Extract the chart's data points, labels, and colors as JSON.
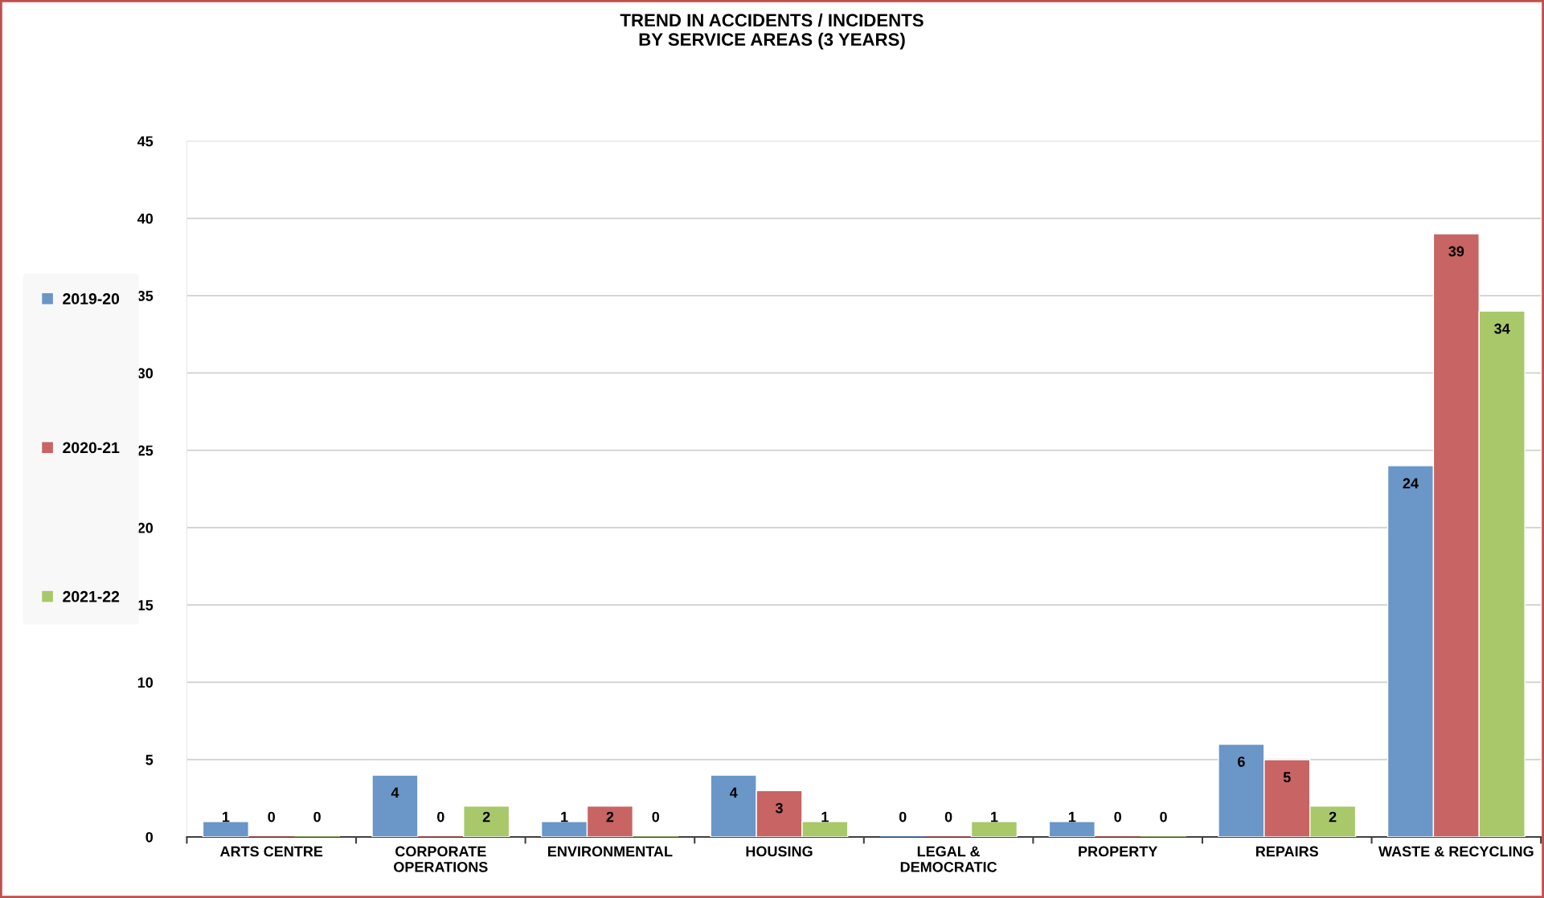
{
  "chart_data": {
    "type": "bar",
    "title": "TREND IN ACCIDENTS / INCIDENTS\nBY SERVICE AREAS (3 YEARS)",
    "categories": [
      "ARTS CENTRE",
      "CORPORATE\nOPERATIONS",
      "ENVIRONMENTAL",
      "HOUSING",
      "LEGAL &\nDEMOCRATIC",
      "PROPERTY",
      "REPAIRS",
      "WASTE & RECYCLING"
    ],
    "series": [
      {
        "name": "2019-20",
        "color": "#6a96c8",
        "values": [
          1,
          4,
          1,
          4,
          0,
          1,
          6,
          24
        ]
      },
      {
        "name": "2020-21",
        "color": "#c86464",
        "values": [
          0,
          0,
          2,
          3,
          0,
          0,
          5,
          39
        ]
      },
      {
        "name": "2021-22",
        "color": "#a8c86a",
        "values": [
          0,
          2,
          0,
          1,
          1,
          0,
          2,
          34
        ]
      }
    ],
    "ylim": [
      0,
      45
    ],
    "yticks": [
      0,
      5,
      10,
      15,
      20,
      25,
      30,
      35,
      40,
      45
    ],
    "grid": "y",
    "legend": "left",
    "data_labels": true
  }
}
